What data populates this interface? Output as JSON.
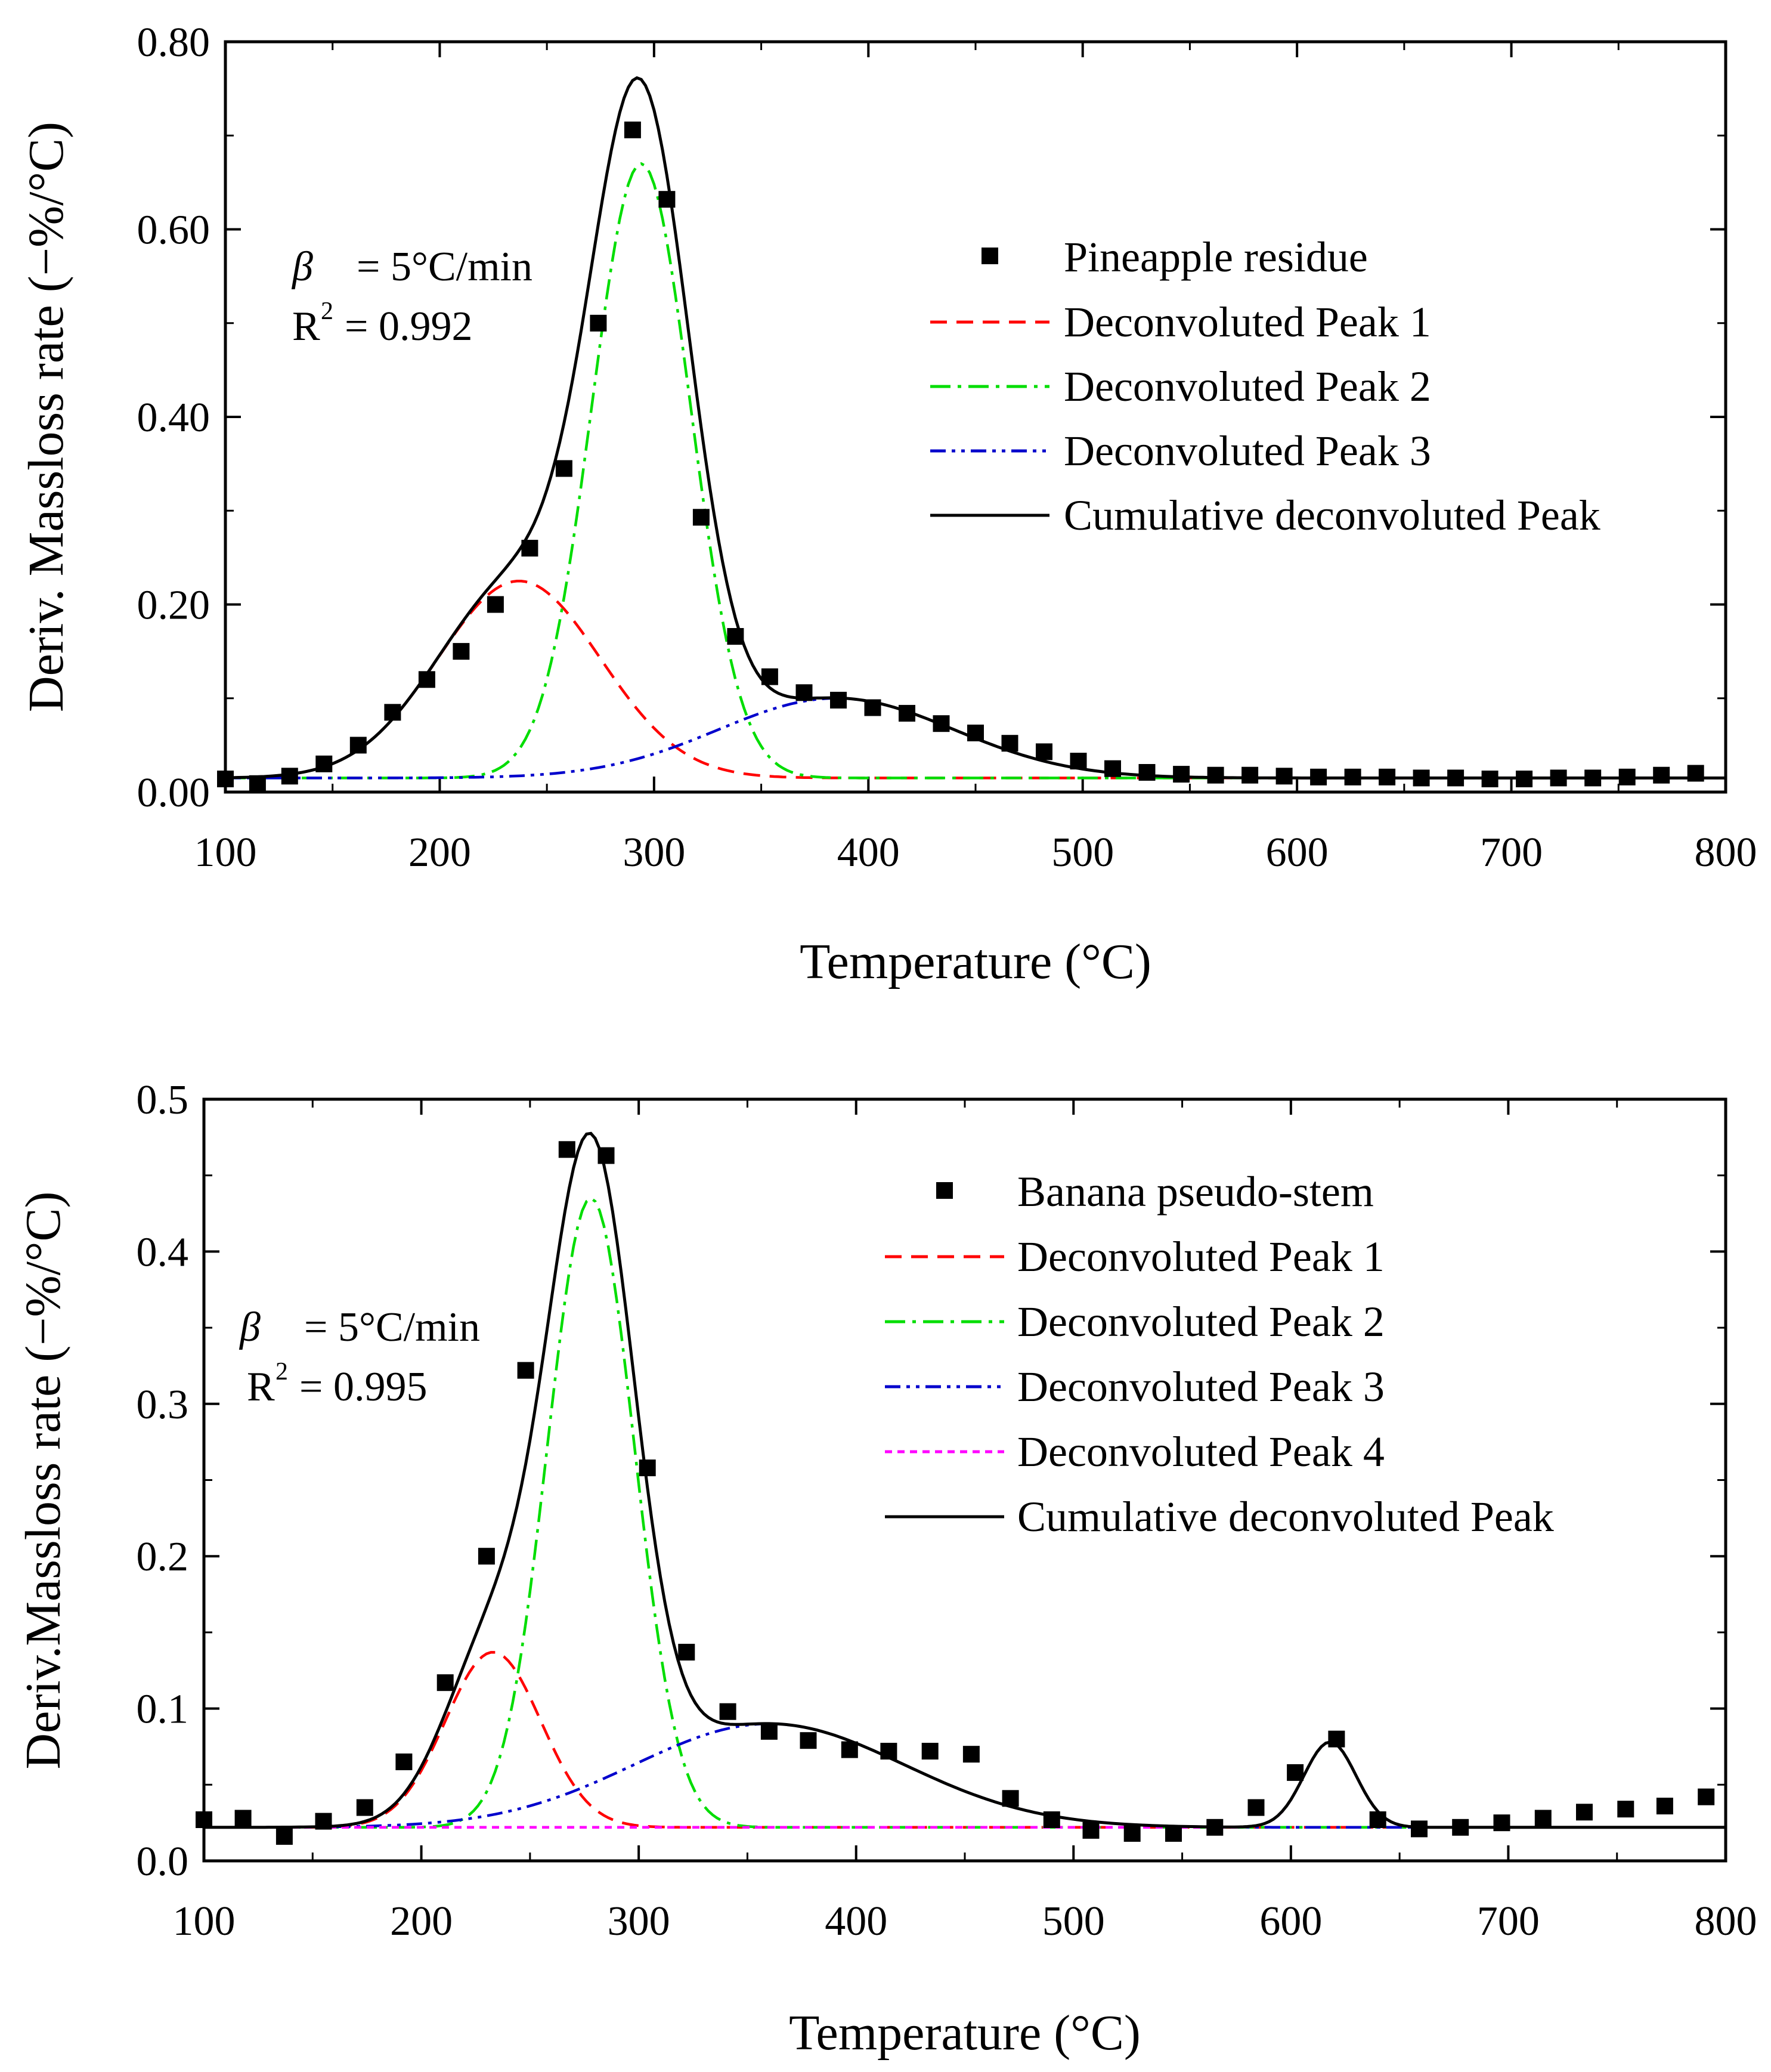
{
  "chart_data": [
    {
      "type": "line",
      "xlabel": "Temperature (°C)",
      "ylabel": "Deriv. Massloss rate (−%/°C)",
      "xlim": [
        100,
        800
      ],
      "ylim": [
        0,
        0.8
      ],
      "xticks": [
        100,
        200,
        300,
        400,
        500,
        600,
        700,
        800
      ],
      "yticks": [
        0,
        0.2,
        0.4,
        0.6,
        0.8
      ],
      "ytick_labels": [
        "0.00",
        "0.20",
        "0.40",
        "0.60",
        "0.80"
      ],
      "baseline": 0.015,
      "annotation": {
        "beta_symbol": "β",
        "beta_value": "= 5°C/min",
        "r2_label": "R",
        "r2_sup": "2",
        "r2_value": "= 0.992"
      },
      "legend_position": "top-right",
      "scatter": {
        "name": "Pineapple residue",
        "x": [
          100,
          115,
          130,
          146,
          162,
          178,
          194,
          210,
          226,
          242,
          258,
          274,
          290,
          306,
          322,
          338,
          354,
          370,
          386,
          402,
          418,
          434,
          450,
          466,
          482,
          498,
          514,
          530,
          546,
          562,
          578,
          594,
          610,
          626,
          642,
          658,
          674,
          690,
          706,
          722,
          738,
          754,
          770,
          786
        ],
        "y": [
          0.014,
          0.009,
          0.017,
          0.03,
          0.05,
          0.085,
          0.12,
          0.15,
          0.2,
          0.26,
          0.345,
          0.5,
          0.706,
          0.632,
          0.293,
          0.166,
          0.123,
          0.106,
          0.098,
          0.09,
          0.084,
          0.073,
          0.063,
          0.052,
          0.043,
          0.033,
          0.025,
          0.021,
          0.019,
          0.018,
          0.018,
          0.017,
          0.016,
          0.016,
          0.016,
          0.015,
          0.015,
          0.014,
          0.014,
          0.015,
          0.015,
          0.016,
          0.018,
          0.02
        ]
      },
      "series": [
        {
          "name": "Deconvoluted Peak 1",
          "color": "#ff0000",
          "style": "dashed",
          "peak_x": 237,
          "height": 0.21,
          "width": 38
        },
        {
          "name": "Deconvoluted Peak 2",
          "color": "#00dd00",
          "style": "dashdot",
          "peak_x": 294,
          "height": 0.655,
          "width": 23
        },
        {
          "name": "Deconvoluted Peak 3",
          "color": "#0000cc",
          "style": "dashdotdot",
          "peak_x": 385,
          "height": 0.085,
          "width": 55
        },
        {
          "name": "Cumulative deconvoluted Peak",
          "color": "#000000",
          "style": "solid",
          "sum_of": [
            0,
            1,
            2
          ]
        }
      ]
    },
    {
      "type": "line",
      "xlabel": "Temperature (°C)",
      "ylabel": "Deriv.Massloss rate (−%/°C)",
      "xlim": [
        100,
        800
      ],
      "ylim": [
        0,
        0.5
      ],
      "xticks": [
        100,
        200,
        300,
        400,
        500,
        600,
        700,
        800
      ],
      "yticks": [
        0,
        0.1,
        0.2,
        0.3,
        0.4,
        0.5
      ],
      "ytick_labels": [
        "0.0",
        "0.1",
        "0.2",
        "0.3",
        "0.4",
        "0.5"
      ],
      "baseline": 0.022,
      "annotation": {
        "beta_symbol": "β",
        "beta_value": "= 5°C/min",
        "r2_label": "R",
        "r2_sup": "2",
        "r2_value": "= 0.995"
      },
      "legend_position": "top-right",
      "scatter": {
        "name": "Banana pseudo-stem",
        "x": [
          100,
          118,
          137,
          155,
          174,
          192,
          211,
          230,
          248,
          267,
          285,
          304,
          322,
          341,
          360,
          378,
          397,
          415,
          434,
          453,
          471,
          490,
          508,
          527,
          546,
          565,
          584,
          602,
          621,
          640,
          659,
          678,
          697,
          716,
          735,
          754,
          772,
          791
        ],
        "y": [
          0.027,
          0.028,
          0.016,
          0.026,
          0.035,
          0.065,
          0.117,
          0.2,
          0.322,
          0.467,
          0.463,
          0.258,
          0.137,
          0.098,
          0.085,
          0.079,
          0.073,
          0.072,
          0.072,
          0.07,
          0.041,
          0.027,
          0.02,
          0.018,
          0.018,
          0.022,
          0.035,
          0.058,
          0.08,
          0.027,
          0.021,
          0.022,
          0.025,
          0.028,
          0.032,
          0.034,
          0.036,
          0.042
        ]
      },
      "series": [
        {
          "name": "Deconvoluted Peak 1",
          "color": "#ff0000",
          "style": "dashed",
          "peak_x": 233,
          "height": 0.115,
          "width": 22
        },
        {
          "name": "Deconvoluted Peak 2",
          "color": "#00dd00",
          "style": "dashdot",
          "peak_x": 278,
          "height": 0.413,
          "width": 20
        },
        {
          "name": "Deconvoluted Peak 3",
          "color": "#0000cc",
          "style": "dashdotdot",
          "peak_x": 360,
          "height": 0.068,
          "width": 62
        },
        {
          "name": "Deconvoluted Peak 4",
          "color": "#ff00ff",
          "style": "dotted",
          "peak_x": 618,
          "height": 0.056,
          "width": 12
        },
        {
          "name": "Cumulative deconvoluted Peak",
          "color": "#000000",
          "style": "solid",
          "sum_of": [
            0,
            1,
            2,
            3
          ]
        }
      ]
    }
  ]
}
